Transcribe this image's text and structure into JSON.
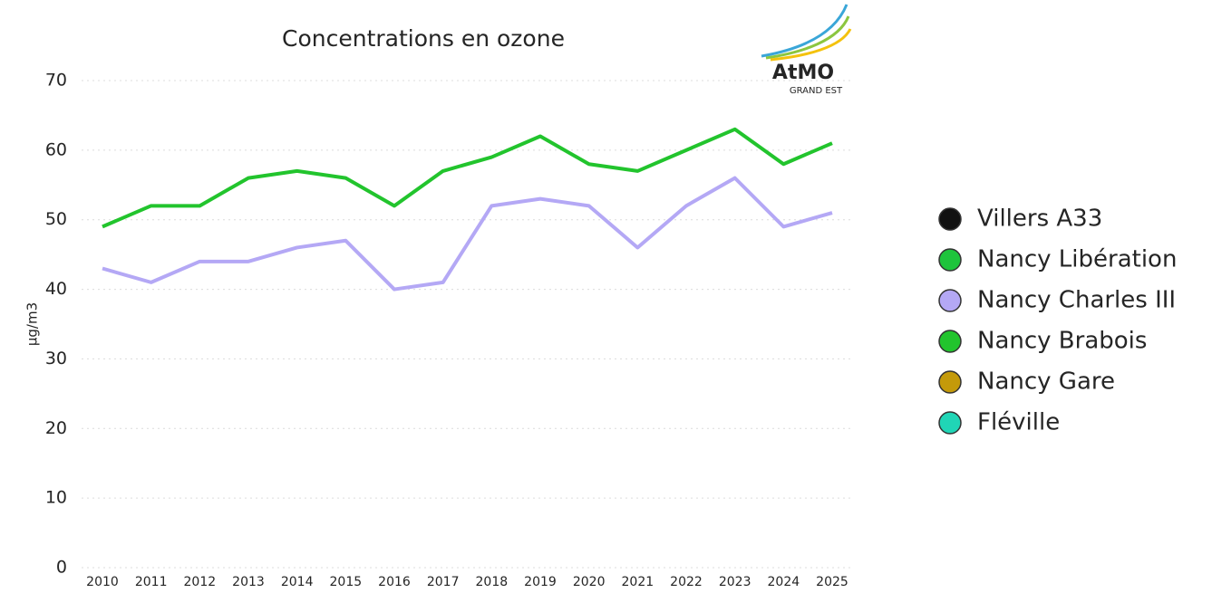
{
  "chart_data": {
    "type": "line",
    "title": "Concentrations en ozone",
    "y_label": "µg/m3",
    "logo": {
      "name": "AtMO",
      "subtitle": "GRAND EST"
    },
    "categories": [
      "2010",
      "2011",
      "2012",
      "2013",
      "2014",
      "2015",
      "2016",
      "2017",
      "2018",
      "2019",
      "2020",
      "2021",
      "2022",
      "2023",
      "2024",
      "2025"
    ],
    "series": [
      {
        "name": "Villers A33",
        "color": "#111111",
        "values": [
          null,
          null,
          null,
          null,
          null,
          null,
          null,
          null,
          null,
          null,
          null,
          null,
          null,
          null,
          null,
          null
        ]
      },
      {
        "name": "Nancy Libération",
        "color": "#1ec43c",
        "values": [
          null,
          null,
          null,
          null,
          null,
          null,
          null,
          null,
          null,
          null,
          null,
          null,
          null,
          null,
          null,
          null
        ]
      },
      {
        "name": "Nancy Charles III",
        "color": "#b4a8f5",
        "values": [
          43,
          41,
          44,
          44,
          46,
          47,
          40,
          41,
          52,
          53,
          52,
          46,
          52,
          56,
          49,
          51
        ]
      },
      {
        "name": "Nancy Brabois",
        "color": "#22c42d",
        "values": [
          49,
          52,
          52,
          56,
          57,
          56,
          52,
          57,
          59,
          62,
          58,
          57,
          60,
          63,
          58,
          61
        ]
      },
      {
        "name": "Nancy Gare",
        "color": "#c49a0a",
        "values": [
          null,
          null,
          null,
          null,
          null,
          null,
          null,
          null,
          null,
          null,
          null,
          null,
          null,
          null,
          null,
          null
        ]
      },
      {
        "name": "Fléville",
        "color": "#20d5b6",
        "values": [
          null,
          null,
          null,
          null,
          null,
          null,
          null,
          null,
          null,
          null,
          null,
          null,
          null,
          null,
          null,
          null
        ]
      }
    ],
    "ylim": [
      0,
      70
    ],
    "yticks": [
      0,
      10,
      20,
      30,
      40,
      50,
      60,
      70
    ],
    "grid": true,
    "legend": "right"
  }
}
